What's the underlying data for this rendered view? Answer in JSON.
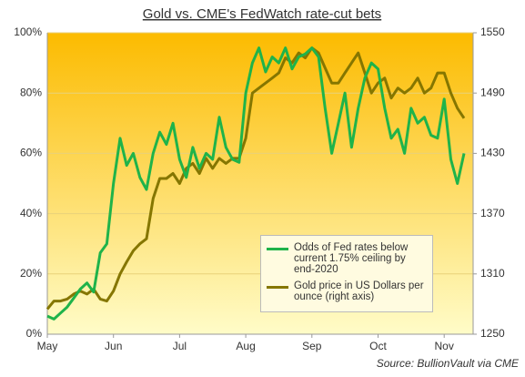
{
  "chart_data": {
    "type": "line",
    "title": "Gold vs. CME's FedWatch rate-cut bets",
    "source": "Source: BullionVault via CME",
    "categories": [
      "May",
      null,
      null,
      null,
      null,
      null,
      null,
      null,
      null,
      null,
      "Jun",
      null,
      null,
      null,
      null,
      null,
      null,
      null,
      null,
      null,
      "Jul",
      null,
      null,
      null,
      null,
      null,
      null,
      null,
      null,
      null,
      "Aug",
      null,
      null,
      null,
      null,
      null,
      null,
      null,
      null,
      null,
      "Sep",
      null,
      null,
      null,
      null,
      null,
      null,
      null,
      null,
      null,
      "Oct",
      null,
      null,
      null,
      null,
      null,
      null,
      null,
      null,
      null,
      "Nov",
      null,
      null,
      null
    ],
    "series": [
      {
        "name": "Odds of Fed rates below current 1.75% ceiling by end-2020",
        "color": "#1fb34a",
        "values": [
          6,
          5,
          7,
          9,
          12,
          15,
          17,
          14,
          27,
          30,
          50,
          65,
          56,
          60,
          52,
          48,
          60,
          67,
          63,
          70,
          58,
          52,
          62,
          55,
          60,
          58,
          72,
          62,
          58,
          57,
          80,
          90,
          95,
          87,
          92,
          90,
          95,
          88,
          92,
          93,
          95,
          92,
          75,
          60,
          70,
          80,
          62,
          75,
          85,
          90,
          88,
          75,
          65,
          68,
          60,
          75,
          70,
          72,
          66,
          65,
          78,
          58,
          50,
          60
        ]
      },
      {
        "name": "Gold price in US Dollars per ounce (right axis)",
        "color": "#857600",
        "axis": "y2",
        "values": [
          1275,
          1283,
          1283,
          1285,
          1290,
          1293,
          1290,
          1295,
          1285,
          1283,
          1293,
          1310,
          1322,
          1333,
          1340,
          1345,
          1385,
          1405,
          1405,
          1410,
          1400,
          1415,
          1420,
          1410,
          1425,
          1415,
          1425,
          1420,
          1425,
          1425,
          1445,
          1490,
          1495,
          1500,
          1505,
          1510,
          1525,
          1520,
          1530,
          1525,
          1535,
          1530,
          1515,
          1500,
          1500,
          1510,
          1520,
          1530,
          1510,
          1490,
          1500,
          1505,
          1485,
          1495,
          1490,
          1495,
          1505,
          1490,
          1495,
          1510,
          1510,
          1490,
          1475,
          1465
        ]
      }
    ],
    "ylim": [
      0,
      100
    ],
    "yticks": [
      {
        "value": 0,
        "label": "0%"
      },
      {
        "value": 20,
        "label": "20%"
      },
      {
        "value": 40,
        "label": "40%"
      },
      {
        "value": 60,
        "label": "60%"
      },
      {
        "value": 80,
        "label": "80%"
      },
      {
        "value": 100,
        "label": "100%"
      }
    ],
    "y2lim": [
      1250,
      1550
    ],
    "y2ticks": [
      1250,
      1310,
      1370,
      1430,
      1490,
      1550
    ],
    "grid": true
  }
}
